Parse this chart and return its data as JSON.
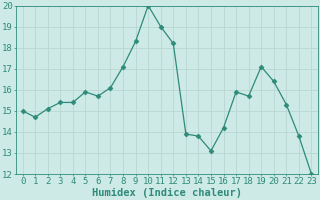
{
  "x": [
    0,
    1,
    2,
    3,
    4,
    5,
    6,
    7,
    8,
    9,
    10,
    11,
    12,
    13,
    14,
    15,
    16,
    17,
    18,
    19,
    20,
    21,
    22,
    23
  ],
  "y": [
    15.0,
    14.7,
    15.1,
    15.4,
    15.4,
    15.9,
    15.7,
    16.1,
    17.1,
    18.3,
    20.0,
    19.0,
    18.2,
    13.9,
    13.8,
    13.1,
    14.2,
    15.9,
    15.7,
    17.1,
    16.4,
    15.3,
    13.8,
    12.0
  ],
  "line_color": "#2e8b7a",
  "marker": "D",
  "marker_size": 2.5,
  "bg_color": "#ceeae6",
  "grid_color": "#b8d8d4",
  "xlabel": "Humidex (Indice chaleur)",
  "ylim": [
    12,
    20
  ],
  "xlim_min": -0.5,
  "xlim_max": 23.5,
  "yticks": [
    12,
    13,
    14,
    15,
    16,
    17,
    18,
    19,
    20
  ],
  "xticks": [
    0,
    1,
    2,
    3,
    4,
    5,
    6,
    7,
    8,
    9,
    10,
    11,
    12,
    13,
    14,
    15,
    16,
    17,
    18,
    19,
    20,
    21,
    22,
    23
  ],
  "tick_color": "#2e8b7a",
  "font_size_xlabel": 7.5,
  "font_size_ticks": 6.5
}
